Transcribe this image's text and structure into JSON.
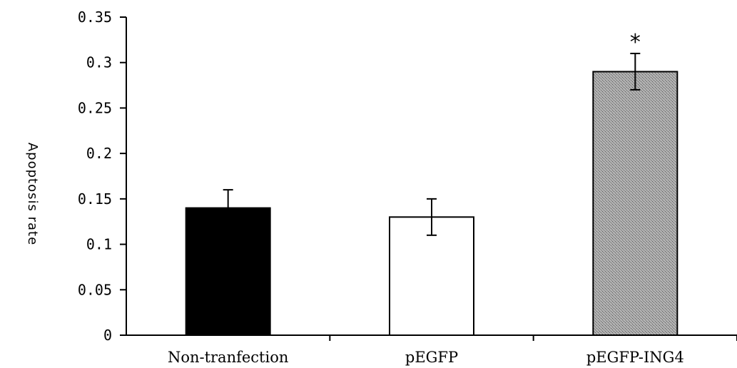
{
  "chart_data": {
    "type": "bar",
    "title": "",
    "xlabel": "",
    "ylabel": "Apoptosis rate",
    "categories": [
      "Non-tranfection",
      "pEGFP",
      "pEGFP-ING4"
    ],
    "values": [
      0.14,
      0.13,
      0.29
    ],
    "errors": [
      0.02,
      0.02,
      0.02
    ],
    "ylim": [
      0,
      0.35
    ],
    "yticks": [
      0,
      0.05,
      0.1,
      0.15,
      0.2,
      0.25,
      0.3,
      0.35
    ],
    "ytick_labels": [
      "0",
      "0.05",
      "0.1",
      "0.15",
      "0.2",
      "0.25",
      "0.3",
      "0.35"
    ],
    "bar_fills": [
      "#000000",
      "#ffffff",
      "#9a9a9a"
    ],
    "bar_pattern": [
      "solid",
      "solid",
      "stippled"
    ],
    "annotations": [
      {
        "category": "pEGFP-ING4",
        "text": "*"
      }
    ],
    "grid": false,
    "legend": "none"
  }
}
